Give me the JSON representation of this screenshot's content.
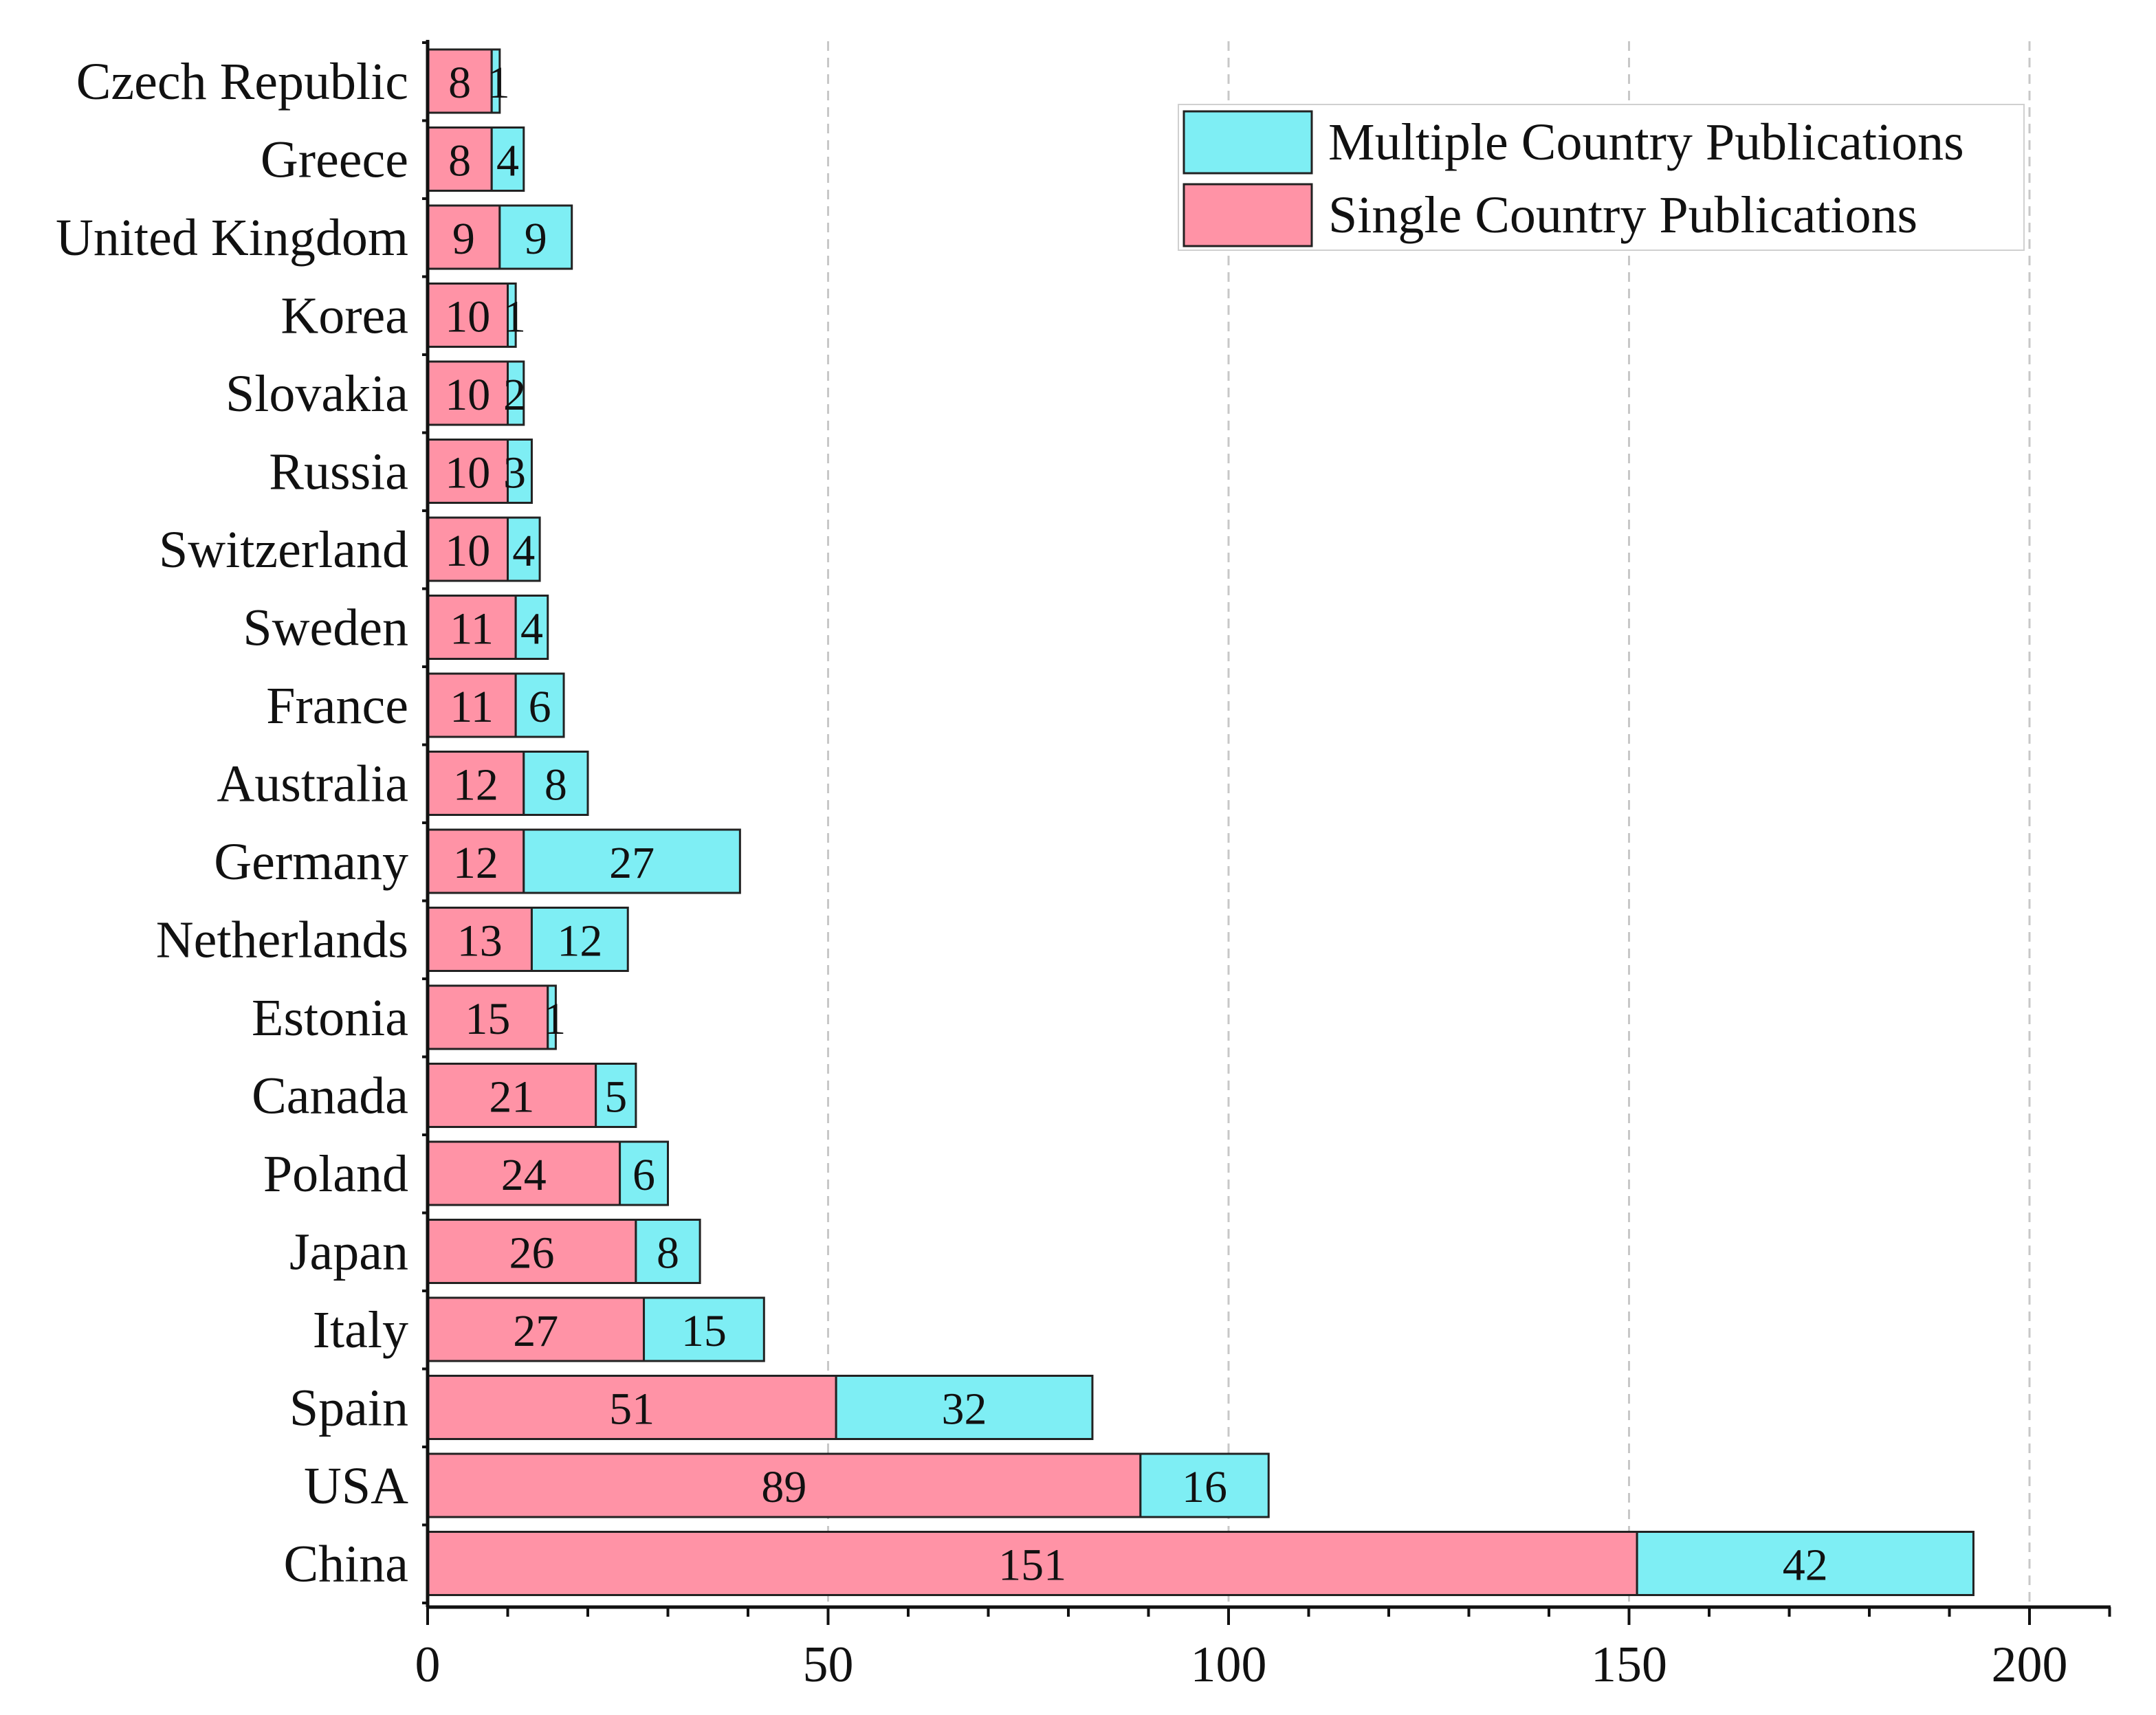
{
  "chart_data": {
    "type": "bar",
    "orientation": "horizontal",
    "stacked": true,
    "title": "",
    "xlabel": "",
    "ylabel": "",
    "xlim": [
      0,
      210
    ],
    "xticks": [
      0,
      50,
      100,
      150,
      200
    ],
    "grid": "vertical dashed",
    "legend_position": "top-right",
    "categories": [
      "Czech Republic",
      "Greece",
      "United Kingdom",
      "Korea",
      "Slovakia",
      "Russia",
      "Switzerland",
      "Sweden",
      "France",
      "Australia",
      "Germany",
      "Netherlands",
      "Estonia",
      "Canada",
      "Poland",
      "Japan",
      "Italy",
      "Spain",
      "USA",
      "China"
    ],
    "series": [
      {
        "name": "Single Country Publications",
        "color": "#FF93A6",
        "values": [
          8,
          8,
          9,
          10,
          10,
          10,
          10,
          11,
          11,
          12,
          12,
          13,
          15,
          21,
          24,
          26,
          27,
          51,
          89,
          151
        ]
      },
      {
        "name": "Multiple Country Publications",
        "color": "#7EEEF4",
        "values": [
          1,
          4,
          9,
          1,
          2,
          3,
          4,
          4,
          6,
          8,
          27,
          12,
          1,
          5,
          6,
          8,
          15,
          32,
          16,
          42
        ]
      }
    ],
    "legend": [
      "Multiple Country Publications",
      "Single Country Publications"
    ]
  }
}
